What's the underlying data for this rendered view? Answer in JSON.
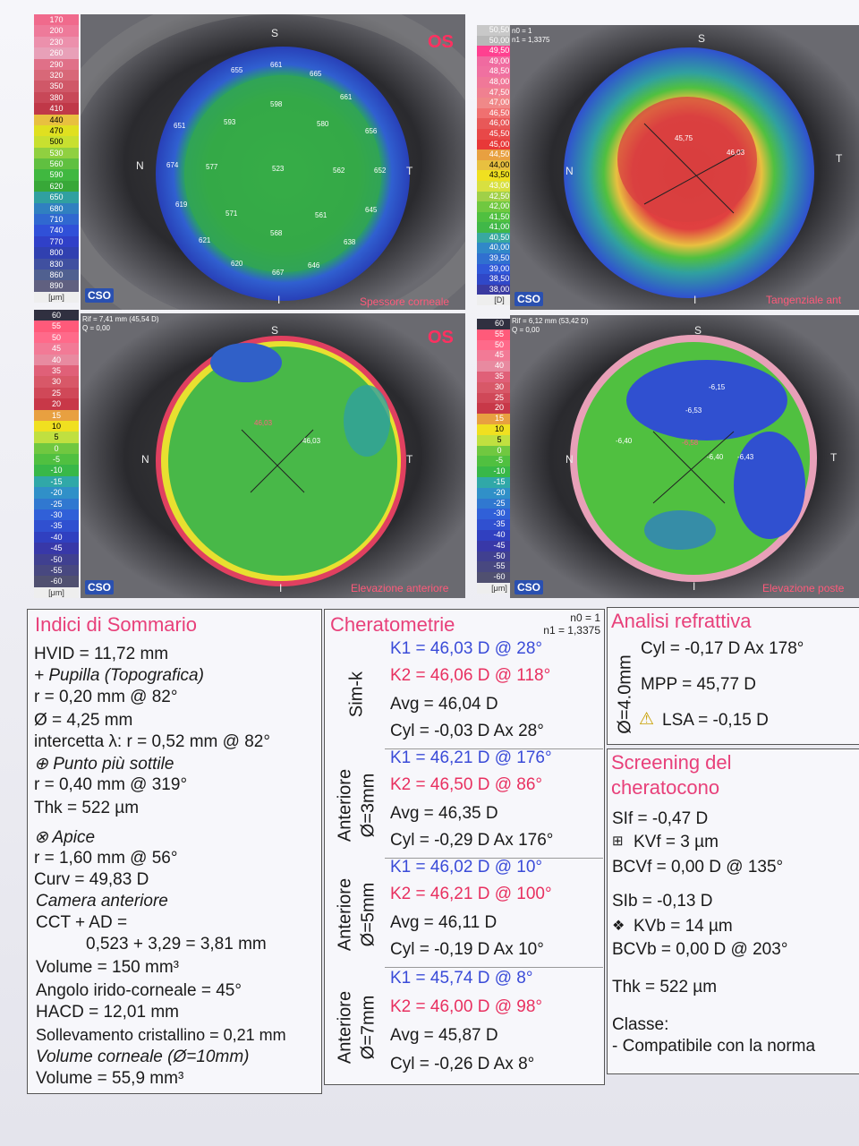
{
  "scales": {
    "thickness": [
      "170",
      "200",
      "230",
      "260",
      "290",
      "320",
      "350",
      "380",
      "410",
      "440",
      "470",
      "500",
      "530",
      "560",
      "590",
      "620",
      "650",
      "680",
      "710",
      "740",
      "770",
      "800",
      "830",
      "860",
      "890"
    ],
    "thickness_unit": "[μm]",
    "tangential": [
      "50,50",
      "50,00",
      "49,50",
      "49,00",
      "48,50",
      "48,00",
      "47,50",
      "47,00",
      "46,50",
      "46,00",
      "45,50",
      "45,00",
      "44,50",
      "44,00",
      "43,50",
      "43,00",
      "42,50",
      "42,00",
      "41,50",
      "41,00",
      "40,50",
      "40,00",
      "39,50",
      "39,00",
      "38,50",
      "38,00"
    ],
    "tangential_unit": "[D]",
    "elevation": [
      "60",
      "55",
      "50",
      "45",
      "40",
      "35",
      "30",
      "25",
      "20",
      "15",
      "10",
      "5",
      "0",
      "-5",
      "-10",
      "-15",
      "-20",
      "-25",
      "-30",
      "-35",
      "-40",
      "-45",
      "-50",
      "-55",
      "-60"
    ],
    "elevation_unit": "[μm]"
  },
  "colors": {
    "thickness": [
      "#f06a8c",
      "#ee7a9a",
      "#ec90ac",
      "#e8a0b8",
      "#e07088",
      "#d86878",
      "#d05868",
      "#c84858",
      "#c03848",
      "#e8c040",
      "#e0e020",
      "#c8e030",
      "#90d040",
      "#60c040",
      "#40b840",
      "#38a838",
      "#30a0a0",
      "#3080c0",
      "#3068d0",
      "#3050d8",
      "#3040c8",
      "#3040b0",
      "#4050a0",
      "#506090",
      "#606080"
    ],
    "tangential": [
      "#c8c8c8",
      "#b8b8b8",
      "#ff4090",
      "#f06aa0",
      "#f070a0",
      "#f07898",
      "#f08090",
      "#f08888",
      "#f07070",
      "#e85858",
      "#e84848",
      "#e83838",
      "#e8a040",
      "#e8c040",
      "#f0e020",
      "#d8e040",
      "#a0d048",
      "#70c840",
      "#50c040",
      "#40b848",
      "#38a8a0",
      "#3088c8",
      "#3070d0",
      "#3058d8",
      "#3048c8",
      "#3a3aa0"
    ],
    "elevation": [
      "#303040",
      "#ff5a7a",
      "#ff6a8a",
      "#f27a96",
      "#e88aa0",
      "#e06078",
      "#d85868",
      "#d04858",
      "#c83848",
      "#e8a040",
      "#f0e020",
      "#c0e040",
      "#70c840",
      "#50c040",
      "#38b848",
      "#30a8a8",
      "#3090c8",
      "#3078d0",
      "#3060d8",
      "#3050d0",
      "#3040c0",
      "#3838a8",
      "#404090",
      "#484880",
      "#505070"
    ]
  },
  "maps": {
    "os_label": "OS",
    "thickness": {
      "label": "Spessore corneale",
      "values": [
        "655",
        "661",
        "665",
        "598",
        "593",
        "580",
        "661",
        "656",
        "651",
        "523",
        "674",
        "577",
        "562",
        "652",
        "619",
        "571",
        "561",
        "645",
        "568",
        "638",
        "621",
        "620",
        "667",
        "646"
      ]
    },
    "tangential": {
      "label": "Tangenziale ant",
      "header": [
        "n0 = 1",
        "n1 = 1,3375"
      ],
      "values": [
        "45,75",
        "46,03"
      ]
    },
    "elev_ant": {
      "label": "Elevazione anteriore",
      "header": [
        "Rif = 7,41 mm (45,54 D)",
        "Q = 0,00"
      ],
      "values": [
        "46,03",
        "46,03"
      ]
    },
    "elev_post": {
      "label": "Elevazione poste",
      "header": [
        "Rif = 6,12 mm (53,42 D)",
        "Q = 0,00"
      ],
      "values": [
        "-6,15",
        "-6,53",
        "-6,40",
        "-6,58",
        "-6,40",
        "-6,43"
      ]
    },
    "dirs": {
      "s": "S",
      "n": "N",
      "t": "T",
      "i": "I"
    },
    "cso": "CSO"
  },
  "summary": {
    "title": "Indici di Sommario",
    "lines": [
      "HVID = 11,72 mm",
      "+ Pupilla (Topografica)",
      "r = 0,20 mm @ 82°",
      "Ø = 4,25 mm",
      "intercetta λ: r = 0,52 mm @ 82°",
      "⊕ Punto più sottile",
      "r = 0,40 mm @ 319°",
      "Thk = 522 µm",
      "⊗ Apice",
      "r = 1,60 mm @ 56°",
      "Curv = 49,83 D",
      "Camera anteriore",
      "CCT + AD =",
      "0,523 + 3,29 = 3,81 mm",
      "Volume = 150 mm³",
      "Angolo irido-corneale = 45°",
      "HACD = 12,01 mm",
      "Sollevamento cristallino = 0,21 mm",
      "Volume corneale (Ø=10mm)",
      "Volume = 55,9 mm³"
    ]
  },
  "kerato": {
    "title": "Cheratometrie",
    "n0": "n0 = 1",
    "n1": "n1 = 1,3375",
    "groups": [
      {
        "label1": "Sim-k",
        "label2": "",
        "k1": "K1 = 46,03 D  @ 28°",
        "k2": "K2 = 46,06 D  @ 118°",
        "avg": "Avg = 46,04 D",
        "cyl": "Cyl = -0,03 D Ax 28°"
      },
      {
        "label1": "Anteriore",
        "label2": "Ø=3mm",
        "k1": "K1 = 46,21 D  @ 176°",
        "k2": "K2 = 46,50 D  @ 86°",
        "avg": "Avg = 46,35 D",
        "cyl": "Cyl = -0,29 D Ax 176°"
      },
      {
        "label1": "Anteriore",
        "label2": "Ø=5mm",
        "k1": "K1 = 46,02 D  @ 10°",
        "k2": "K2 = 46,21 D  @ 100°",
        "avg": "Avg = 46,11 D",
        "cyl": "Cyl = -0,19 D Ax 10°"
      },
      {
        "label1": "Anteriore",
        "label2": "Ø=7mm",
        "k1": "K1 = 45,74 D  @ 8°",
        "k2": "K2 = 46,00 D  @ 98°",
        "avg": "Avg = 45,87 D",
        "cyl": "Cyl = -0,26 D Ax 8°"
      }
    ]
  },
  "refr": {
    "title": "Analisi refrattiva",
    "side": "Ø=4.0mm",
    "cyl": "Cyl = -0,17 D Ax 178°",
    "mpp": "MPP = 45,77 D",
    "lsa": "LSA = -0,15 D"
  },
  "screening": {
    "title1": "Screening del",
    "title2": "cheratocono",
    "sif": "SIf = -0,47 D",
    "kvf": "KVf = 3 µm",
    "bcvf": "BCVf = 0,00 D @ 135°",
    "sib": "SIb = -0,13 D",
    "kvb": "KVb = 14 µm",
    "bcvb": "BCVb = 0,00 D @ 203°",
    "thk": "Thk = 522 µm",
    "classe": "Classe:",
    "result": "- Compatibile con la norma"
  }
}
